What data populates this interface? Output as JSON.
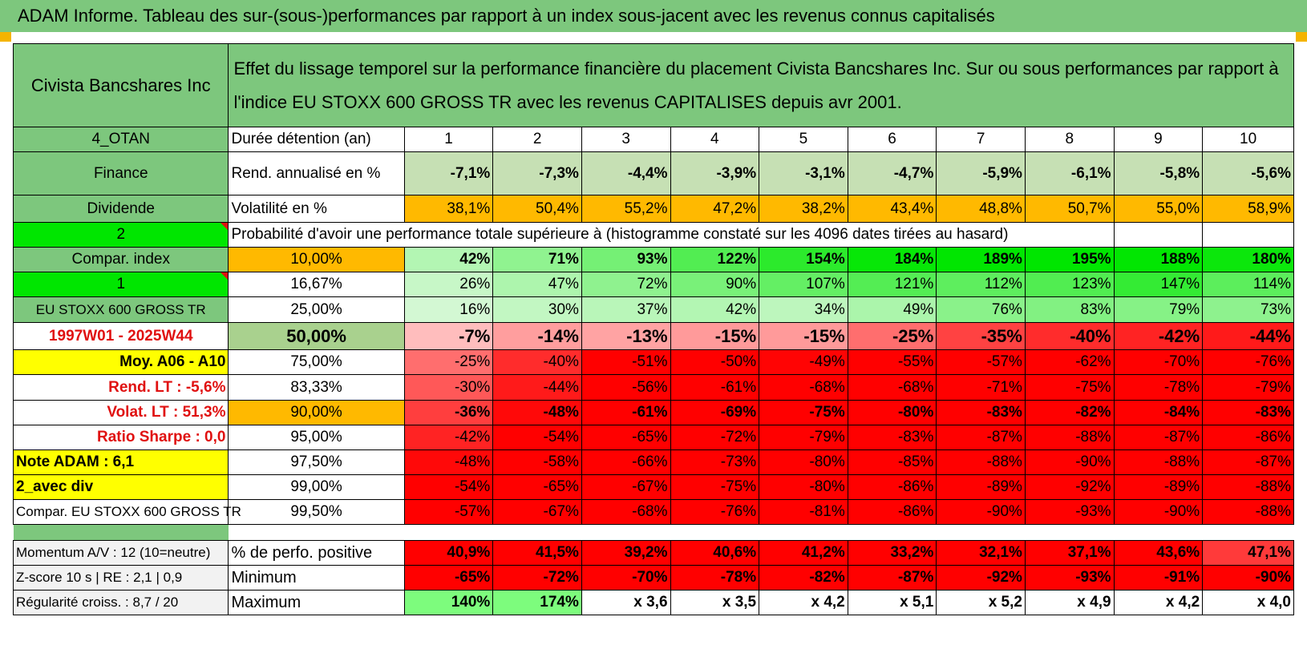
{
  "title": "ADAM Informe. Tableau des sur-(sous-)performances par rapport à un index sous-jacent avec les revenus connus capitalisés",
  "asset_name": "Civista Bancshares Inc",
  "description": "Effet du lissage temporel sur la performance financière du placement Civista Bancshares Inc. Sur ou sous performances par rapport à l'indice EU STOXX 600 GROSS TR avec les revenus CAPITALISES depuis avr 2001.",
  "colors": {
    "header_green": "#7dc77d",
    "bright_green": "#00e600",
    "yellow": "#ffff00",
    "orange": "#ffb900",
    "red": "#ff0000",
    "red_text": "#e01010"
  },
  "left": {
    "code": "4_OTAN",
    "sector": "Finance",
    "type": "Dividende",
    "sel1": "2",
    "compar": "Compar. index",
    "sel2": "1",
    "index": "EU STOXX 600 GROSS TR",
    "period": "1997W01 - 2025W44",
    "moy": "Moy. A06 - A10",
    "rend": "Rend. LT :    -5,6%",
    "volat": "Volat. LT :    51,3%",
    "sharpe": "Ratio Sharpe :     0,0",
    "note": "Note ADAM : 6,1",
    "avec": "2_avec div",
    "compar2": "Compar. EU STOXX 600 GROSS TR",
    "momentum": "Momentum A/V : 12 (10=neutre)",
    "zscore": "Z-score 10 s | RE : 2,1 | 0,9",
    "regul": "Régularité croiss. : 8,7 / 20"
  },
  "years_label": "Durée détention (an)",
  "years": [
    "1",
    "2",
    "3",
    "4",
    "5",
    "6",
    "7",
    "8",
    "9",
    "10"
  ],
  "rend_label": "Rend. annualisé en %",
  "rend": [
    "-7,1%",
    "-7,3%",
    "-4,4%",
    "-3,9%",
    "-3,1%",
    "-4,7%",
    "-5,9%",
    "-6,1%",
    "-5,8%",
    "-5,6%"
  ],
  "vol_label": "Volatilité en %",
  "vol": [
    "38,1%",
    "50,4%",
    "55,2%",
    "47,2%",
    "38,2%",
    "43,4%",
    "48,8%",
    "50,7%",
    "55,0%",
    "58,9%"
  ],
  "prob_label": "Probabilité d'avoir une performance totale supérieure à (histogramme constaté sur les 4096 dates tirées au hasard)",
  "quantiles": [
    {
      "p": "10,00%",
      "v": [
        "42%",
        "71%",
        "93%",
        "122%",
        "154%",
        "184%",
        "189%",
        "195%",
        "188%",
        "180%"
      ]
    },
    {
      "p": "16,67%",
      "v": [
        "26%",
        "47%",
        "72%",
        "90%",
        "107%",
        "121%",
        "112%",
        "123%",
        "147%",
        "114%"
      ]
    },
    {
      "p": "25,00%",
      "v": [
        "16%",
        "30%",
        "37%",
        "42%",
        "34%",
        "49%",
        "76%",
        "83%",
        "79%",
        "73%"
      ]
    },
    {
      "p": "50,00%",
      "v": [
        "-7%",
        "-14%",
        "-13%",
        "-15%",
        "-15%",
        "-25%",
        "-35%",
        "-40%",
        "-42%",
        "-44%"
      ]
    },
    {
      "p": "75,00%",
      "v": [
        "-25%",
        "-40%",
        "-51%",
        "-50%",
        "-49%",
        "-55%",
        "-57%",
        "-62%",
        "-70%",
        "-76%"
      ]
    },
    {
      "p": "83,33%",
      "v": [
        "-30%",
        "-44%",
        "-56%",
        "-61%",
        "-68%",
        "-68%",
        "-71%",
        "-75%",
        "-78%",
        "-79%"
      ]
    },
    {
      "p": "90,00%",
      "v": [
        "-36%",
        "-48%",
        "-61%",
        "-69%",
        "-75%",
        "-80%",
        "-83%",
        "-82%",
        "-84%",
        "-83%"
      ]
    },
    {
      "p": "95,00%",
      "v": [
        "-42%",
        "-54%",
        "-65%",
        "-72%",
        "-79%",
        "-83%",
        "-87%",
        "-88%",
        "-87%",
        "-86%"
      ]
    },
    {
      "p": "97,50%",
      "v": [
        "-48%",
        "-58%",
        "-66%",
        "-73%",
        "-80%",
        "-85%",
        "-88%",
        "-90%",
        "-88%",
        "-87%"
      ]
    },
    {
      "p": "99,00%",
      "v": [
        "-54%",
        "-65%",
        "-67%",
        "-75%",
        "-80%",
        "-86%",
        "-89%",
        "-92%",
        "-89%",
        "-88%"
      ]
    },
    {
      "p": "99,50%",
      "v": [
        "-57%",
        "-67%",
        "-68%",
        "-76%",
        "-81%",
        "-86%",
        "-90%",
        "-93%",
        "-90%",
        "-88%"
      ]
    }
  ],
  "bottom": [
    {
      "label": "% de perfo. positive",
      "v": [
        "40,9%",
        "41,5%",
        "39,2%",
        "40,6%",
        "41,2%",
        "33,2%",
        "32,1%",
        "37,1%",
        "43,6%",
        "47,1%"
      ]
    },
    {
      "label": "Minimum",
      "v": [
        "-65%",
        "-72%",
        "-70%",
        "-78%",
        "-82%",
        "-87%",
        "-92%",
        "-93%",
        "-91%",
        "-90%"
      ]
    },
    {
      "label": "Maximum",
      "v": [
        "140%",
        "174%",
        "x 3,6",
        "x 3,5",
        "x 4,2",
        "x 5,1",
        "x 5,2",
        "x 4,9",
        "x 4,2",
        "x 4,0"
      ]
    }
  ]
}
